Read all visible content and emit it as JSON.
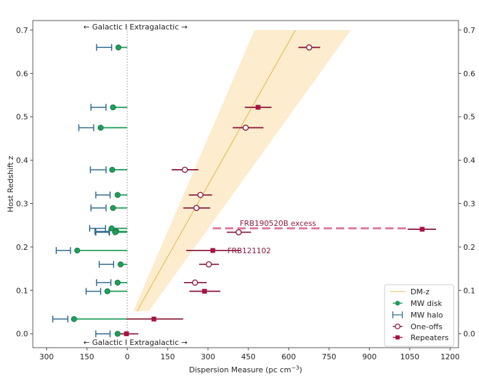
{
  "chart_data": {
    "type": "scatter",
    "xlabel": "Dispersion Measure (pc cm",
    "xlabel_sup": "−3",
    "xlabel_end": ")",
    "ylabel": "Host Redshift z",
    "xlim": [
      -351,
      1231
    ],
    "ylim": [
      -0.032,
      0.722
    ],
    "xticks": [
      -300,
      -150,
      0,
      150,
      300,
      450,
      600,
      750,
      900,
      1050,
      1200
    ],
    "xtick_labels": [
      "300",
      "150",
      "0",
      "150",
      "300",
      "450",
      "600",
      "750",
      "900",
      "1050",
      "1200"
    ],
    "yticks": [
      0.0,
      0.1,
      0.2,
      0.3,
      0.4,
      0.5,
      0.6,
      0.7
    ],
    "ytick_labels": [
      "0.0",
      "0.1",
      "0.2",
      "0.3",
      "0.4",
      "0.5",
      "0.6",
      "0.7"
    ],
    "divider_label": "← Galactic I Extragalactic →",
    "grid": false,
    "legend_position": "bottom-right",
    "colors": {
      "dmz": "#e0b84a",
      "band": "#fde9c4",
      "disk": "#1f9e5a",
      "halo": "#2d6a8e",
      "oneoff": "#8b1a3c",
      "repeater": "#a8123e",
      "excess": "#e07a9a"
    },
    "dmz": {
      "z": [
        0.052,
        0.7
      ],
      "dm": [
        36,
        625
      ],
      "band_lower": [
        22,
        473
      ],
      "band_upper": [
        80,
        831
      ]
    },
    "series": [
      {
        "name": "DM-z"
      },
      {
        "name": "MW disk",
        "points": [
          {
            "z": 0.66,
            "dm": -33
          },
          {
            "z": 0.522,
            "dm": -53
          },
          {
            "z": 0.475,
            "dm": -99
          },
          {
            "z": 0.378,
            "dm": -56
          },
          {
            "z": 0.32,
            "dm": -36
          },
          {
            "z": 0.29,
            "dm": -53
          },
          {
            "z": 0.243,
            "dm": -58
          },
          {
            "z": 0.236,
            "dm": -41
          },
          {
            "z": 0.234,
            "dm": -45
          },
          {
            "z": 0.192,
            "dm": -186
          },
          {
            "z": 0.16,
            "dm": -25
          },
          {
            "z": 0.118,
            "dm": -36
          },
          {
            "z": 0.098,
            "dm": -74
          },
          {
            "z": 0.034,
            "dm": -198
          },
          {
            "z": 0.0,
            "dm": -36
          }
        ]
      },
      {
        "name": "MW halo",
        "points": [
          {
            "z": 0.66,
            "lo": -114,
            "hi": -58
          },
          {
            "z": 0.522,
            "lo": -135,
            "hi": -79
          },
          {
            "z": 0.475,
            "lo": -180,
            "hi": -125
          },
          {
            "z": 0.378,
            "lo": -137,
            "hi": -79
          },
          {
            "z": 0.32,
            "lo": -117,
            "hi": -64
          },
          {
            "z": 0.29,
            "lo": -135,
            "hi": -79
          },
          {
            "z": 0.243,
            "lo": -140,
            "hi": -81
          },
          {
            "z": 0.236,
            "lo": -120,
            "hi": -68
          },
          {
            "z": 0.234,
            "lo": -117,
            "hi": -66
          },
          {
            "z": 0.192,
            "lo": -264,
            "hi": -211
          },
          {
            "z": 0.16,
            "lo": -104,
            "hi": -51
          },
          {
            "z": 0.118,
            "lo": -114,
            "hi": -61
          },
          {
            "z": 0.098,
            "lo": -153,
            "hi": -99
          },
          {
            "z": 0.034,
            "lo": -277,
            "hi": -221
          },
          {
            "z": 0.0,
            "lo": -117,
            "hi": -64
          }
        ]
      },
      {
        "name": "One-offs",
        "points": [
          {
            "z": 0.66,
            "dm": 676,
            "lo": 636,
            "hi": 717
          },
          {
            "z": 0.475,
            "dm": 440,
            "lo": 392,
            "hi": 506
          },
          {
            "z": 0.378,
            "dm": 214,
            "lo": 165,
            "hi": 264
          },
          {
            "z": 0.32,
            "dm": 272,
            "lo": 229,
            "hi": 315
          },
          {
            "z": 0.29,
            "dm": 257,
            "lo": 208,
            "hi": 308
          },
          {
            "z": 0.234,
            "dm": 414,
            "lo": 370,
            "hi": 460
          },
          {
            "z": 0.16,
            "dm": 303,
            "lo": 267,
            "hi": 341
          },
          {
            "z": 0.118,
            "dm": 252,
            "lo": 211,
            "hi": 295
          }
        ]
      },
      {
        "name": "Repeaters",
        "points": [
          {
            "z": 0.522,
            "dm": 486,
            "lo": 437,
            "hi": 536
          },
          {
            "z": 0.241,
            "dm": 1096,
            "lo": 1042,
            "hi": 1147
          },
          {
            "z": 0.192,
            "dm": 318,
            "lo": 219,
            "hi": 422
          },
          {
            "z": 0.098,
            "dm": 287,
            "lo": 231,
            "hi": 346
          },
          {
            "z": 0.034,
            "dm": 99,
            "lo": -3,
            "hi": 208
          },
          {
            "z": 0.0,
            "dm": -3,
            "lo": -25,
            "hi": 41
          }
        ]
      }
    ],
    "annotations": [
      {
        "text": "FRB190520B excess",
        "z": 0.255,
        "dm": 560,
        "line_z": 0.243,
        "line_from": 318,
        "line_to": 1042
      },
      {
        "text": "FRB121102",
        "z": 0.192,
        "dm": 453
      }
    ]
  }
}
